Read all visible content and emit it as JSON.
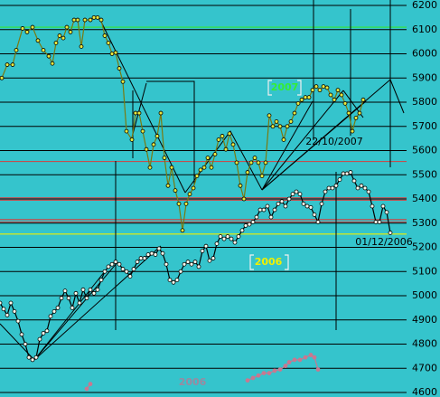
{
  "chart_data": {
    "type": "line",
    "ylim": [
      4600,
      6200
    ],
    "yticks": [
      4600,
      4700,
      4800,
      4900,
      5000,
      5100,
      5200,
      5300,
      5400,
      5500,
      5600,
      5700,
      5800,
      5900,
      6000,
      6100,
      6200
    ],
    "xlim": [
      0,
      450
    ],
    "grid": true,
    "background": "#35c4cc",
    "reference_lines": [
      {
        "value": 6110,
        "color": "#33e633"
      },
      {
        "value": 5555,
        "color": "#c05050"
      },
      {
        "value": 5405,
        "color": "#c05050"
      },
      {
        "value": 5395,
        "color": "#c05050"
      },
      {
        "value": 5315,
        "color": "#c05050"
      },
      {
        "value": 5305,
        "color": "#c05050"
      },
      {
        "value": 5255,
        "color": "#f0f000"
      }
    ],
    "series": [
      {
        "name": "2007",
        "color": "#7a7a10",
        "marker": "#e8e840",
        "x": [
          2,
          8,
          14,
          18,
          25,
          30,
          36,
          42,
          48,
          54,
          58,
          62,
          66,
          70,
          74,
          78,
          82,
          86,
          90,
          94,
          100,
          104,
          108,
          112,
          116,
          120,
          124,
          128,
          132,
          136,
          140,
          146,
          150,
          154,
          158,
          162,
          166,
          170,
          174,
          178,
          182,
          186,
          190,
          194,
          198,
          202,
          206,
          210,
          214,
          218,
          222,
          226,
          230,
          234,
          238,
          242,
          246,
          250,
          254,
          258,
          262,
          266,
          270,
          274,
          278,
          282,
          286,
          290,
          294,
          298,
          302,
          306,
          310,
          314,
          318,
          322,
          326,
          330,
          334,
          338,
          342,
          346,
          350,
          354,
          358,
          362,
          366,
          370,
          374,
          378,
          382,
          386,
          390,
          394,
          398,
          402
        ],
        "values": [
          5900,
          5955,
          5955,
          6015,
          6105,
          6090,
          6110,
          6055,
          6015,
          5990,
          5960,
          6045,
          6075,
          6065,
          6110,
          6090,
          6140,
          6140,
          6030,
          6140,
          6140,
          6150,
          6150,
          6140,
          6075,
          6045,
          6000,
          6005,
          5940,
          5885,
          5680,
          5645,
          5755,
          5755,
          5680,
          5605,
          5530,
          5625,
          5660,
          5755,
          5570,
          5455,
          5530,
          5435,
          5380,
          5270,
          5380,
          5420,
          5445,
          5495,
          5520,
          5530,
          5570,
          5530,
          5585,
          5645,
          5660,
          5605,
          5670,
          5625,
          5550,
          5455,
          5400,
          5510,
          5550,
          5570,
          5550,
          5495,
          5550,
          5745,
          5700,
          5720,
          5700,
          5645,
          5700,
          5720,
          5755,
          5795,
          5810,
          5820,
          5820,
          5850,
          5865,
          5850,
          5865,
          5860,
          5830,
          5810,
          5850,
          5830,
          5795,
          5755,
          5680,
          5735,
          5755,
          5810
        ]
      },
      {
        "name": "2006",
        "color": "#000000",
        "marker": "#fffff0",
        "x": [
          0,
          4,
          8,
          12,
          16,
          20,
          24,
          28,
          32,
          36,
          40,
          44,
          48,
          52,
          56,
          60,
          64,
          68,
          72,
          76,
          80,
          84,
          88,
          92,
          96,
          100,
          104,
          108,
          112,
          116,
          120,
          124,
          128,
          132,
          136,
          140,
          144,
          148,
          152,
          156,
          160,
          164,
          168,
          172,
          176,
          180,
          184,
          188,
          192,
          196,
          200,
          204,
          208,
          212,
          216,
          220,
          224,
          228,
          232,
          236,
          240,
          244,
          248,
          252,
          256,
          260,
          264,
          268,
          272,
          276,
          280,
          284,
          288,
          292,
          296,
          300,
          304,
          308,
          312,
          316,
          320,
          324,
          328,
          332,
          336,
          340,
          344,
          348,
          352,
          356,
          360,
          364,
          368,
          372,
          376,
          380,
          384,
          388,
          392,
          396,
          400,
          404,
          408,
          412,
          416,
          420,
          424,
          428,
          432
        ],
        "values": [
          4970,
          4945,
          4920,
          4970,
          4935,
          4895,
          4840,
          4800,
          4745,
          4735,
          4745,
          4820,
          4845,
          4855,
          4915,
          4935,
          4950,
          4990,
          5020,
          4990,
          4950,
          5010,
          4970,
          5025,
          4990,
          5025,
          5010,
          5025,
          5065,
          5100,
          5120,
          5130,
          5140,
          5130,
          5110,
          5100,
          5080,
          5110,
          5140,
          5155,
          5155,
          5170,
          5175,
          5170,
          5195,
          5175,
          5130,
          5065,
          5055,
          5065,
          5100,
          5130,
          5140,
          5130,
          5140,
          5120,
          5185,
          5205,
          5145,
          5155,
          5215,
          5245,
          5235,
          5245,
          5235,
          5220,
          5245,
          5270,
          5290,
          5295,
          5305,
          5325,
          5355,
          5355,
          5370,
          5325,
          5355,
          5380,
          5390,
          5370,
          5400,
          5420,
          5430,
          5420,
          5380,
          5370,
          5365,
          5335,
          5305,
          5380,
          5430,
          5445,
          5445,
          5455,
          5480,
          5505,
          5505,
          5510,
          5475,
          5445,
          5455,
          5445,
          5430,
          5370,
          5305,
          5305,
          5370,
          5345,
          5260
        ]
      },
      {
        "name": "2006",
        "color": "#c87890",
        "marker": "#c87890",
        "x": [
          96,
          100,
          268,
          274,
          280,
          286,
          292,
          298,
          304,
          310,
          316,
          320,
          326,
          332,
          338,
          344,
          348,
          352
        ],
        "values": [
          4615,
          4635,
          null,
          4650,
          4660,
          4670,
          4680,
          4680,
          4690,
          4695,
          4710,
          4725,
          4735,
          4735,
          4745,
          4755,
          4745,
          4695
        ]
      }
    ],
    "annotations": [
      {
        "text": "2007",
        "color": "#33ee33"
      },
      {
        "text": "2006",
        "color": "#f0f000"
      },
      {
        "text": "2006",
        "color": "#9a8aa0"
      },
      {
        "text": "22/10/2007",
        "color": "#000000"
      },
      {
        "text": "01/12/2006",
        "color": "#000000"
      }
    ]
  }
}
